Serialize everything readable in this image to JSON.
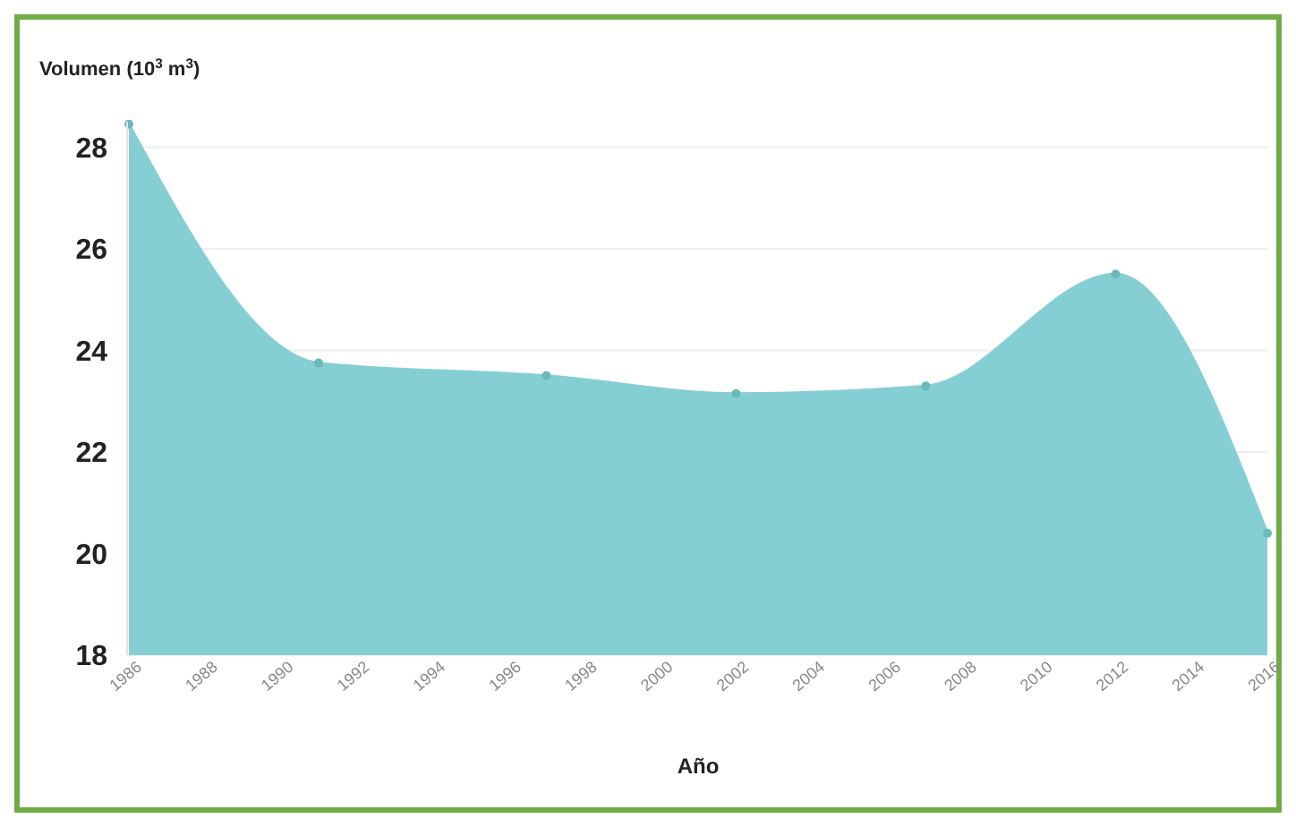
{
  "chart_data": {
    "type": "area",
    "ylabel": "Volumen (10$^{3}$ m$^{3}$)",
    "xlabel": "Año",
    "x": [
      1986,
      1991,
      1997,
      2002,
      2007,
      2012,
      2016
    ],
    "series": [
      {
        "color": "#85cfd4",
        "values": [
          28.45,
          23.75,
          23.5,
          23.15,
          23.3,
          25.5,
          20.4
        ]
      }
    ],
    "xlim": [
      1986,
      2016
    ],
    "xticks": [
      1986,
      1988,
      1990,
      1992,
      1994,
      1996,
      1998,
      2000,
      2002,
      2004,
      2006,
      2008,
      2010,
      2012,
      2014,
      2016
    ],
    "ylim": [
      18,
      28.5
    ],
    "yticks": [
      18,
      20,
      22,
      24,
      26,
      28
    ],
    "grid": "y",
    "marker": "circle"
  }
}
